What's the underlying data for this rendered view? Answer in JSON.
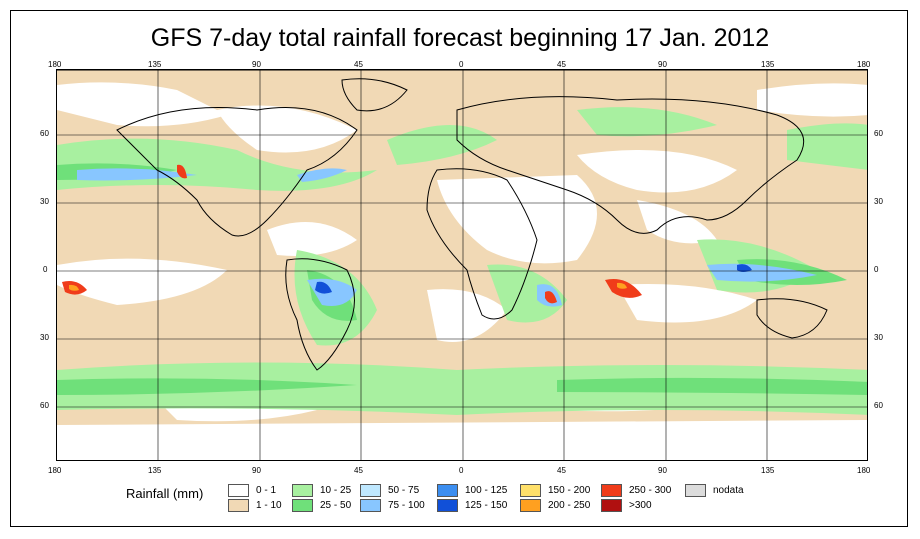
{
  "title": "GFS 7-day total rainfall forecast beginning 17 Jan. 2012",
  "lon_ticks": [
    "180",
    "135",
    "90",
    "45",
    "0",
    "45",
    "90",
    "135",
    "180"
  ],
  "lat_ticks": [
    "60",
    "30",
    "0",
    "30",
    "60"
  ],
  "legend": {
    "title": "Rainfall (mm)",
    "items": [
      {
        "label": "0 - 1",
        "color": "#ffffff"
      },
      {
        "label": "1 - 10",
        "color": "#f1d9b5"
      },
      {
        "label": "10 - 25",
        "color": "#a8f0a0"
      },
      {
        "label": "25 - 50",
        "color": "#6fe07a"
      },
      {
        "label": "50 - 75",
        "color": "#bfe8ff"
      },
      {
        "label": "75 - 100",
        "color": "#88c6ff"
      },
      {
        "label": "100 - 125",
        "color": "#3c8ef0"
      },
      {
        "label": "125 - 150",
        "color": "#1150d8"
      },
      {
        "label": "150 - 200",
        "color": "#ffe06a"
      },
      {
        "label": "200 - 250",
        "color": "#ffa020"
      },
      {
        "label": "250 - 300",
        "color": "#f03c1a"
      },
      {
        "label": ">300",
        "color": "#b01010"
      },
      {
        "label": "nodata",
        "color": "#dcdcdc"
      }
    ]
  }
}
